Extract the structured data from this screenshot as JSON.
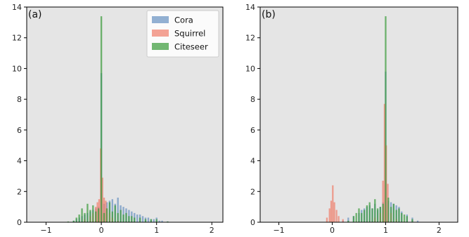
{
  "colors": {
    "cora": "#6a93c2",
    "squirrel": "#f07f6c",
    "citeseer": "#3d9c3d",
    "background": "#e5e5e5"
  },
  "chart_data": [
    {
      "type": "bar",
      "panel_label": "(a)",
      "xlim": [
        -1.35,
        2.2
      ],
      "ylim": [
        0,
        14
      ],
      "xticks": [
        -1,
        0,
        1,
        2
      ],
      "xtick_labels": [
        "−1",
        "0",
        "1",
        "2"
      ],
      "yticks": [
        0,
        2,
        4,
        6,
        8,
        10,
        12,
        14
      ],
      "ytick_labels": [
        "0",
        "2",
        "4",
        "6",
        "8",
        "10",
        "12",
        "14"
      ],
      "grid": false,
      "legend": {
        "placement": "top-right",
        "entries": [
          "Cora",
          "Squirrel",
          "Citeseer"
        ]
      },
      "bin_width": 0.03,
      "series": [
        {
          "name": "Cora",
          "color_key": "cora",
          "x": [
            -0.5,
            -0.45,
            -0.4,
            -0.35,
            -0.3,
            -0.25,
            -0.2,
            -0.15,
            -0.1,
            -0.05,
            0.0,
            0.05,
            0.1,
            0.15,
            0.2,
            0.25,
            0.3,
            0.35,
            0.4,
            0.45,
            0.5,
            0.55,
            0.6,
            0.65,
            0.7,
            0.75,
            0.8,
            0.85,
            0.9,
            0.95,
            1.0,
            1.05,
            1.1,
            1.2
          ],
          "values": [
            0.1,
            0.2,
            0.3,
            0.4,
            0.5,
            0.6,
            0.7,
            0.8,
            0.9,
            1.0,
            9.7,
            1.2,
            1.3,
            1.4,
            1.5,
            1.2,
            1.6,
            1.1,
            1.0,
            0.9,
            0.8,
            0.7,
            0.6,
            0.5,
            0.5,
            0.4,
            0.3,
            0.3,
            0.2,
            0.2,
            0.3,
            0.1,
            0.1,
            0.05
          ]
        },
        {
          "name": "Squirrel",
          "color_key": "squirrel",
          "x": [
            -0.3,
            -0.2,
            -0.15,
            -0.1,
            -0.07,
            -0.04,
            -0.01,
            0.02,
            0.05,
            0.08,
            0.1,
            0.15,
            0.2,
            0.3
          ],
          "values": [
            0.2,
            0.4,
            0.6,
            1.0,
            1.3,
            1.5,
            4.8,
            2.9,
            1.6,
            1.4,
            0.9,
            0.6,
            0.3,
            0.1
          ]
        },
        {
          "name": "Citeseer",
          "color_key": "citeseer",
          "x": [
            -0.6,
            -0.5,
            -0.45,
            -0.4,
            -0.35,
            -0.3,
            -0.25,
            -0.2,
            -0.15,
            -0.1,
            -0.05,
            0.0,
            0.05,
            0.1,
            0.15,
            0.2,
            0.25,
            0.3,
            0.35,
            0.4,
            0.45,
            0.5,
            0.55,
            0.6,
            0.7,
            0.8,
            0.9,
            1.0,
            1.2
          ],
          "values": [
            0.05,
            0.1,
            0.3,
            0.5,
            0.9,
            0.6,
            1.2,
            0.8,
            1.1,
            0.7,
            0.9,
            13.4,
            0.6,
            0.9,
            1.3,
            0.7,
            1.1,
            0.6,
            0.8,
            0.5,
            0.6,
            0.4,
            0.4,
            0.3,
            0.3,
            0.2,
            0.2,
            0.2,
            0.05
          ]
        }
      ]
    },
    {
      "type": "bar",
      "panel_label": "(b)",
      "xlim": [
        -1.35,
        2.35
      ],
      "ylim": [
        0,
        14
      ],
      "xticks": [
        -1,
        0,
        1,
        2
      ],
      "xtick_labels": [
        "−1",
        "0",
        "1",
        "2"
      ],
      "yticks": [
        0,
        2,
        4,
        6,
        8,
        10,
        12,
        14
      ],
      "ytick_labels": [
        "0",
        "2",
        "4",
        "6",
        "8",
        "10",
        "12",
        "14"
      ],
      "grid": false,
      "bin_width": 0.03,
      "series": [
        {
          "name": "Cora",
          "color_key": "cora",
          "x": [
            0.2,
            0.3,
            0.4,
            0.5,
            0.55,
            0.6,
            0.65,
            0.7,
            0.75,
            0.8,
            0.85,
            0.9,
            0.95,
            1.0,
            1.05,
            1.1,
            1.15,
            1.2,
            1.25,
            1.3,
            1.4,
            1.5,
            1.6
          ],
          "values": [
            0.1,
            0.3,
            0.4,
            0.6,
            0.8,
            0.9,
            1.0,
            1.1,
            0.9,
            1.2,
            0.8,
            1.0,
            1.3,
            9.8,
            1.4,
            1.3,
            1.2,
            1.1,
            1.0,
            0.7,
            0.5,
            0.3,
            0.1
          ]
        },
        {
          "name": "Squirrel",
          "color_key": "squirrel",
          "x": [
            -0.1,
            -0.05,
            -0.02,
            0.01,
            0.04,
            0.08,
            0.12,
            0.2,
            0.8,
            0.9,
            0.95,
            0.98,
            1.01,
            1.04,
            1.1,
            1.2
          ],
          "values": [
            0.3,
            0.9,
            1.4,
            2.4,
            1.3,
            0.8,
            0.4,
            0.2,
            0.3,
            0.6,
            2.7,
            7.7,
            5.0,
            2.5,
            0.6,
            0.2
          ],
          "notes": ""
        },
        {
          "name": "Citeseer",
          "color_key": "citeseer",
          "x": [
            0.3,
            0.4,
            0.45,
            0.5,
            0.55,
            0.6,
            0.65,
            0.7,
            0.75,
            0.8,
            0.85,
            0.9,
            0.95,
            1.0,
            1.05,
            1.1,
            1.15,
            1.2,
            1.25,
            1.3,
            1.35,
            1.4,
            1.5
          ],
          "values": [
            0.1,
            0.4,
            0.6,
            0.9,
            0.6,
            0.8,
            1.1,
            1.3,
            0.9,
            1.5,
            0.9,
            1.0,
            1.2,
            13.4,
            1.6,
            1.0,
            1.2,
            0.8,
            0.9,
            0.6,
            0.5,
            0.4,
            0.2
          ]
        }
      ]
    }
  ]
}
